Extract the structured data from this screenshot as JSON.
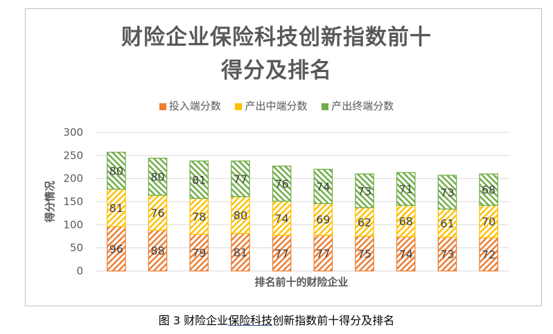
{
  "chart_data": {
    "type": "bar",
    "stacked": true,
    "title_line1": "财险企业保险科技创新指数前十",
    "title_line2": "得分及排名",
    "xlabel": "排名前十的财险企业",
    "ylabel": "得分情况",
    "ylim": [
      0,
      300
    ],
    "yticks": [
      "0",
      "50",
      "100",
      "150",
      "200",
      "250",
      "300"
    ],
    "grid": true,
    "legend_position": "top",
    "categories": [
      "",
      "",
      "",
      "",
      "",
      "",
      "",
      "",
      "",
      ""
    ],
    "series": [
      {
        "name": "投入端分数",
        "color": "#ed7d31",
        "values": [
          96,
          88,
          79,
          81,
          77,
          77,
          75,
          74,
          73,
          72
        ]
      },
      {
        "name": "产出中端分数",
        "color": "#ffc000",
        "values": [
          81,
          76,
          78,
          80,
          74,
          69,
          62,
          68,
          61,
          70
        ]
      },
      {
        "name": "产出终端分数",
        "color": "#70ad47",
        "values": [
          80,
          80,
          81,
          77,
          76,
          74,
          73,
          71,
          73,
          68
        ]
      }
    ]
  },
  "caption": {
    "prefix": "图 3 ",
    "part1": "财险企业",
    "underlined": "保险科技",
    "part2": "创新指数前十得分及排名"
  }
}
